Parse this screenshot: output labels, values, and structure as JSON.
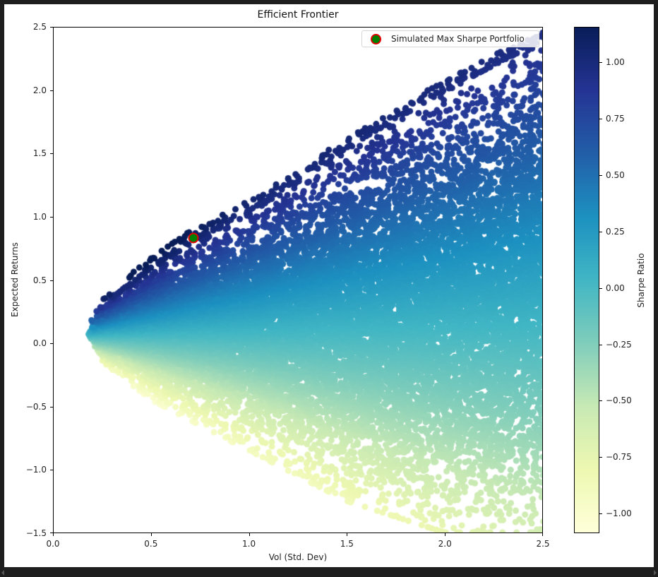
{
  "chart_data": {
    "type": "scatter",
    "title": "Efficient Frontier",
    "xlabel": "Vol (Std. Dev)",
    "ylabel": "Expected Returns",
    "xlim": [
      0.0,
      2.5
    ],
    "ylim": [
      -1.5,
      2.5
    ],
    "xticks": [
      "0.0",
      "0.5",
      "1.0",
      "1.5",
      "2.0",
      "2.5"
    ],
    "yticks": [
      "2.5",
      "2.0",
      "1.5",
      "1.0",
      "0.5",
      "0.0",
      "−0.5",
      "−1.0",
      "−1.5"
    ],
    "grid": false,
    "legend_position": "upper right",
    "legend": [
      {
        "label": "Simulated Max Sharpe Portfolio",
        "marker": "circle",
        "face_color": "#008000",
        "edge_color": "#e00000"
      }
    ],
    "series": [
      {
        "name": "Simulated portfolios",
        "kind": "scatter",
        "color_by": "Sharpe Ratio",
        "colormap": "YlGnBu",
        "approx_point_count": 25000,
        "min_vol": 0.18,
        "min_vol_return": 0.07,
        "upper_envelope": [
          [
            0.18,
            0.07
          ],
          [
            0.25,
            0.3
          ],
          [
            0.5,
            0.6
          ],
          [
            0.72,
            0.83
          ],
          [
            1.0,
            1.05
          ],
          [
            1.5,
            1.55
          ],
          [
            2.0,
            2.0
          ],
          [
            2.5,
            2.4
          ]
        ],
        "lower_envelope": [
          [
            0.18,
            0.07
          ],
          [
            0.25,
            -0.15
          ],
          [
            0.5,
            -0.45
          ],
          [
            1.0,
            -0.85
          ],
          [
            1.5,
            -1.25
          ],
          [
            2.0,
            -1.5
          ],
          [
            2.5,
            -1.5
          ]
        ]
      },
      {
        "name": "Simulated Max Sharpe Portfolio",
        "kind": "marker",
        "points": [
          {
            "x": 0.717,
            "y": 0.832
          }
        ],
        "face_color": "#008000",
        "edge_color": "#e00000"
      }
    ],
    "colorbar": {
      "label": "Sharpe Ratio",
      "range": [
        -1.09,
        1.16
      ],
      "ticks": [
        "1.00",
        "0.75",
        "0.50",
        "0.25",
        "0.00",
        "−0.25",
        "−0.50",
        "−0.75",
        "−1.00"
      ],
      "tick_values": [
        1.0,
        0.75,
        0.5,
        0.25,
        0.0,
        -0.25,
        -0.5,
        -0.75,
        -1.0
      ],
      "colormap_stops": [
        "#ffffd9",
        "#edf8b1",
        "#c7e9b4",
        "#7fcdbb",
        "#41b6c4",
        "#1d91c0",
        "#225ea8",
        "#253494",
        "#081d58"
      ]
    }
  }
}
